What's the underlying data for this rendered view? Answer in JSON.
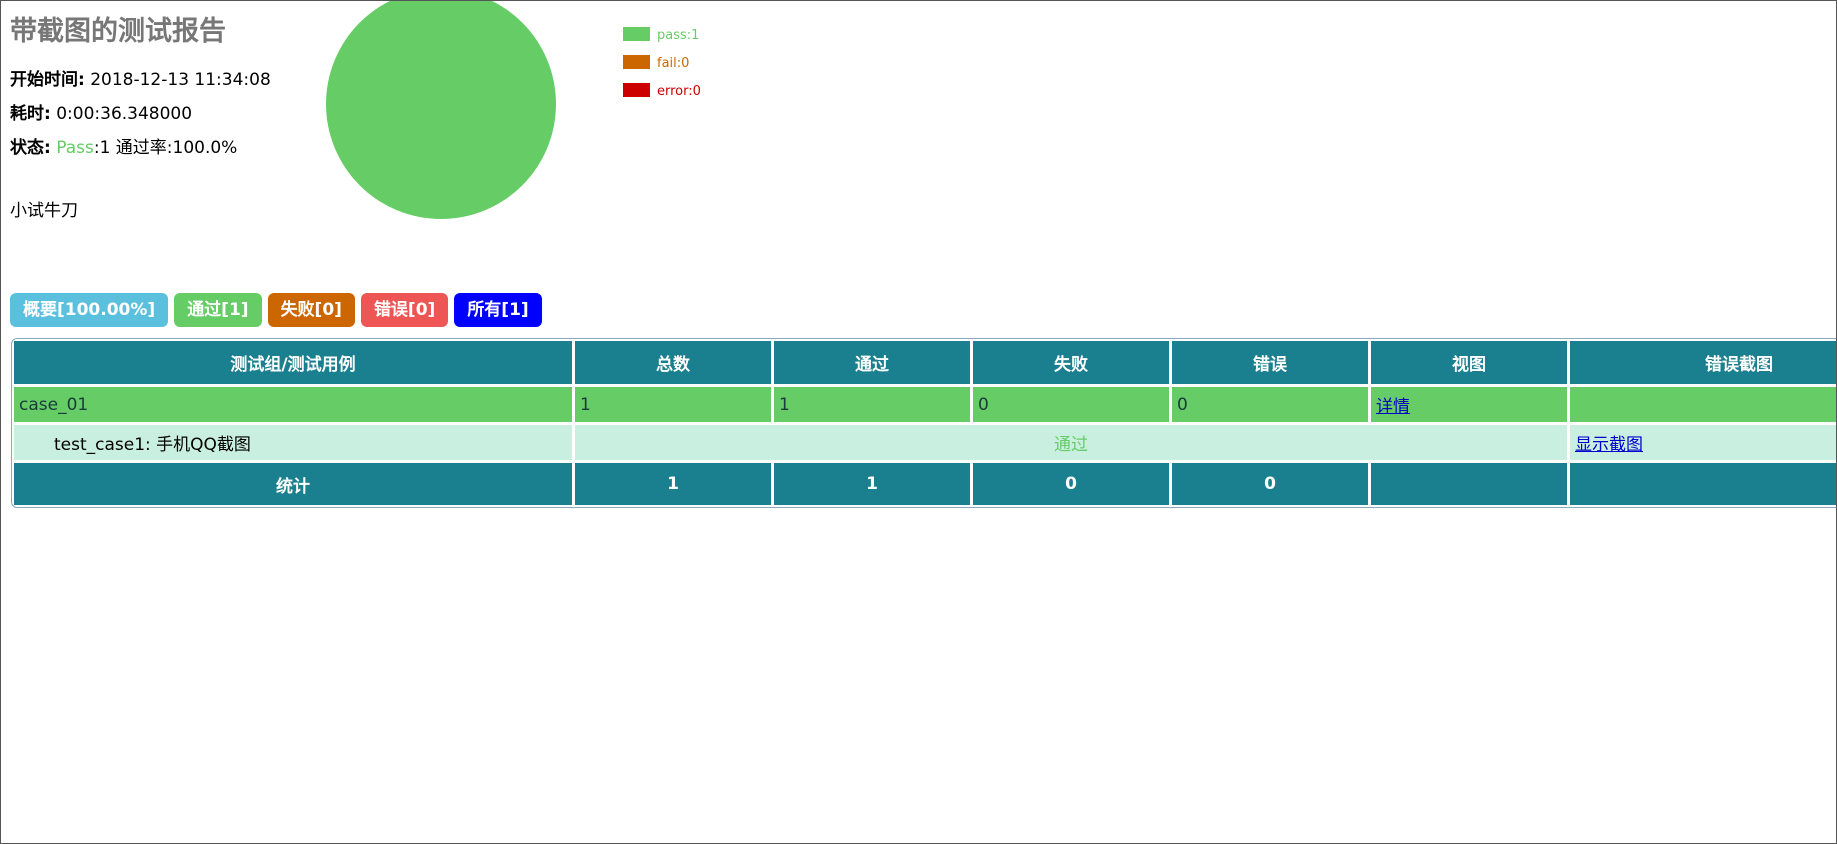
{
  "header": {
    "title": "带截图的测试报告",
    "start_label": "开始时间:",
    "start": "2018-12-13 11:34:08",
    "duration_label": "耗时:",
    "duration": "0:00:36.348000",
    "status_label": "状态:",
    "status_pass": "Pass",
    "status_rest": ":1 通过率:100.0%",
    "description": "小试牛刀"
  },
  "pie": {
    "type": "pie",
    "series": [
      {
        "name": "pass:1",
        "value": 1,
        "color": "#66cc66"
      },
      {
        "name": "fail:0",
        "value": 0,
        "color": "#cc6600"
      },
      {
        "name": "error:0",
        "value": 0,
        "color": "#cc0000"
      }
    ]
  },
  "filters": [
    "概要[100.00%]",
    "通过[1]",
    "失败[0]",
    "错误[0]",
    "所有[1]"
  ],
  "table": {
    "headers": [
      "测试组/测试用例",
      "总数",
      "通过",
      "失败",
      "错误",
      "视图",
      "错误截图"
    ],
    "group": {
      "name": "case_01",
      "counts": [
        1,
        1,
        0,
        0
      ],
      "link": "详情"
    },
    "test": {
      "name": "test_case1: 手机QQ截图",
      "status": "通过",
      "link": "显示截图"
    },
    "total": {
      "name": "统计",
      "counts": [
        1,
        1,
        0,
        0
      ]
    }
  }
}
